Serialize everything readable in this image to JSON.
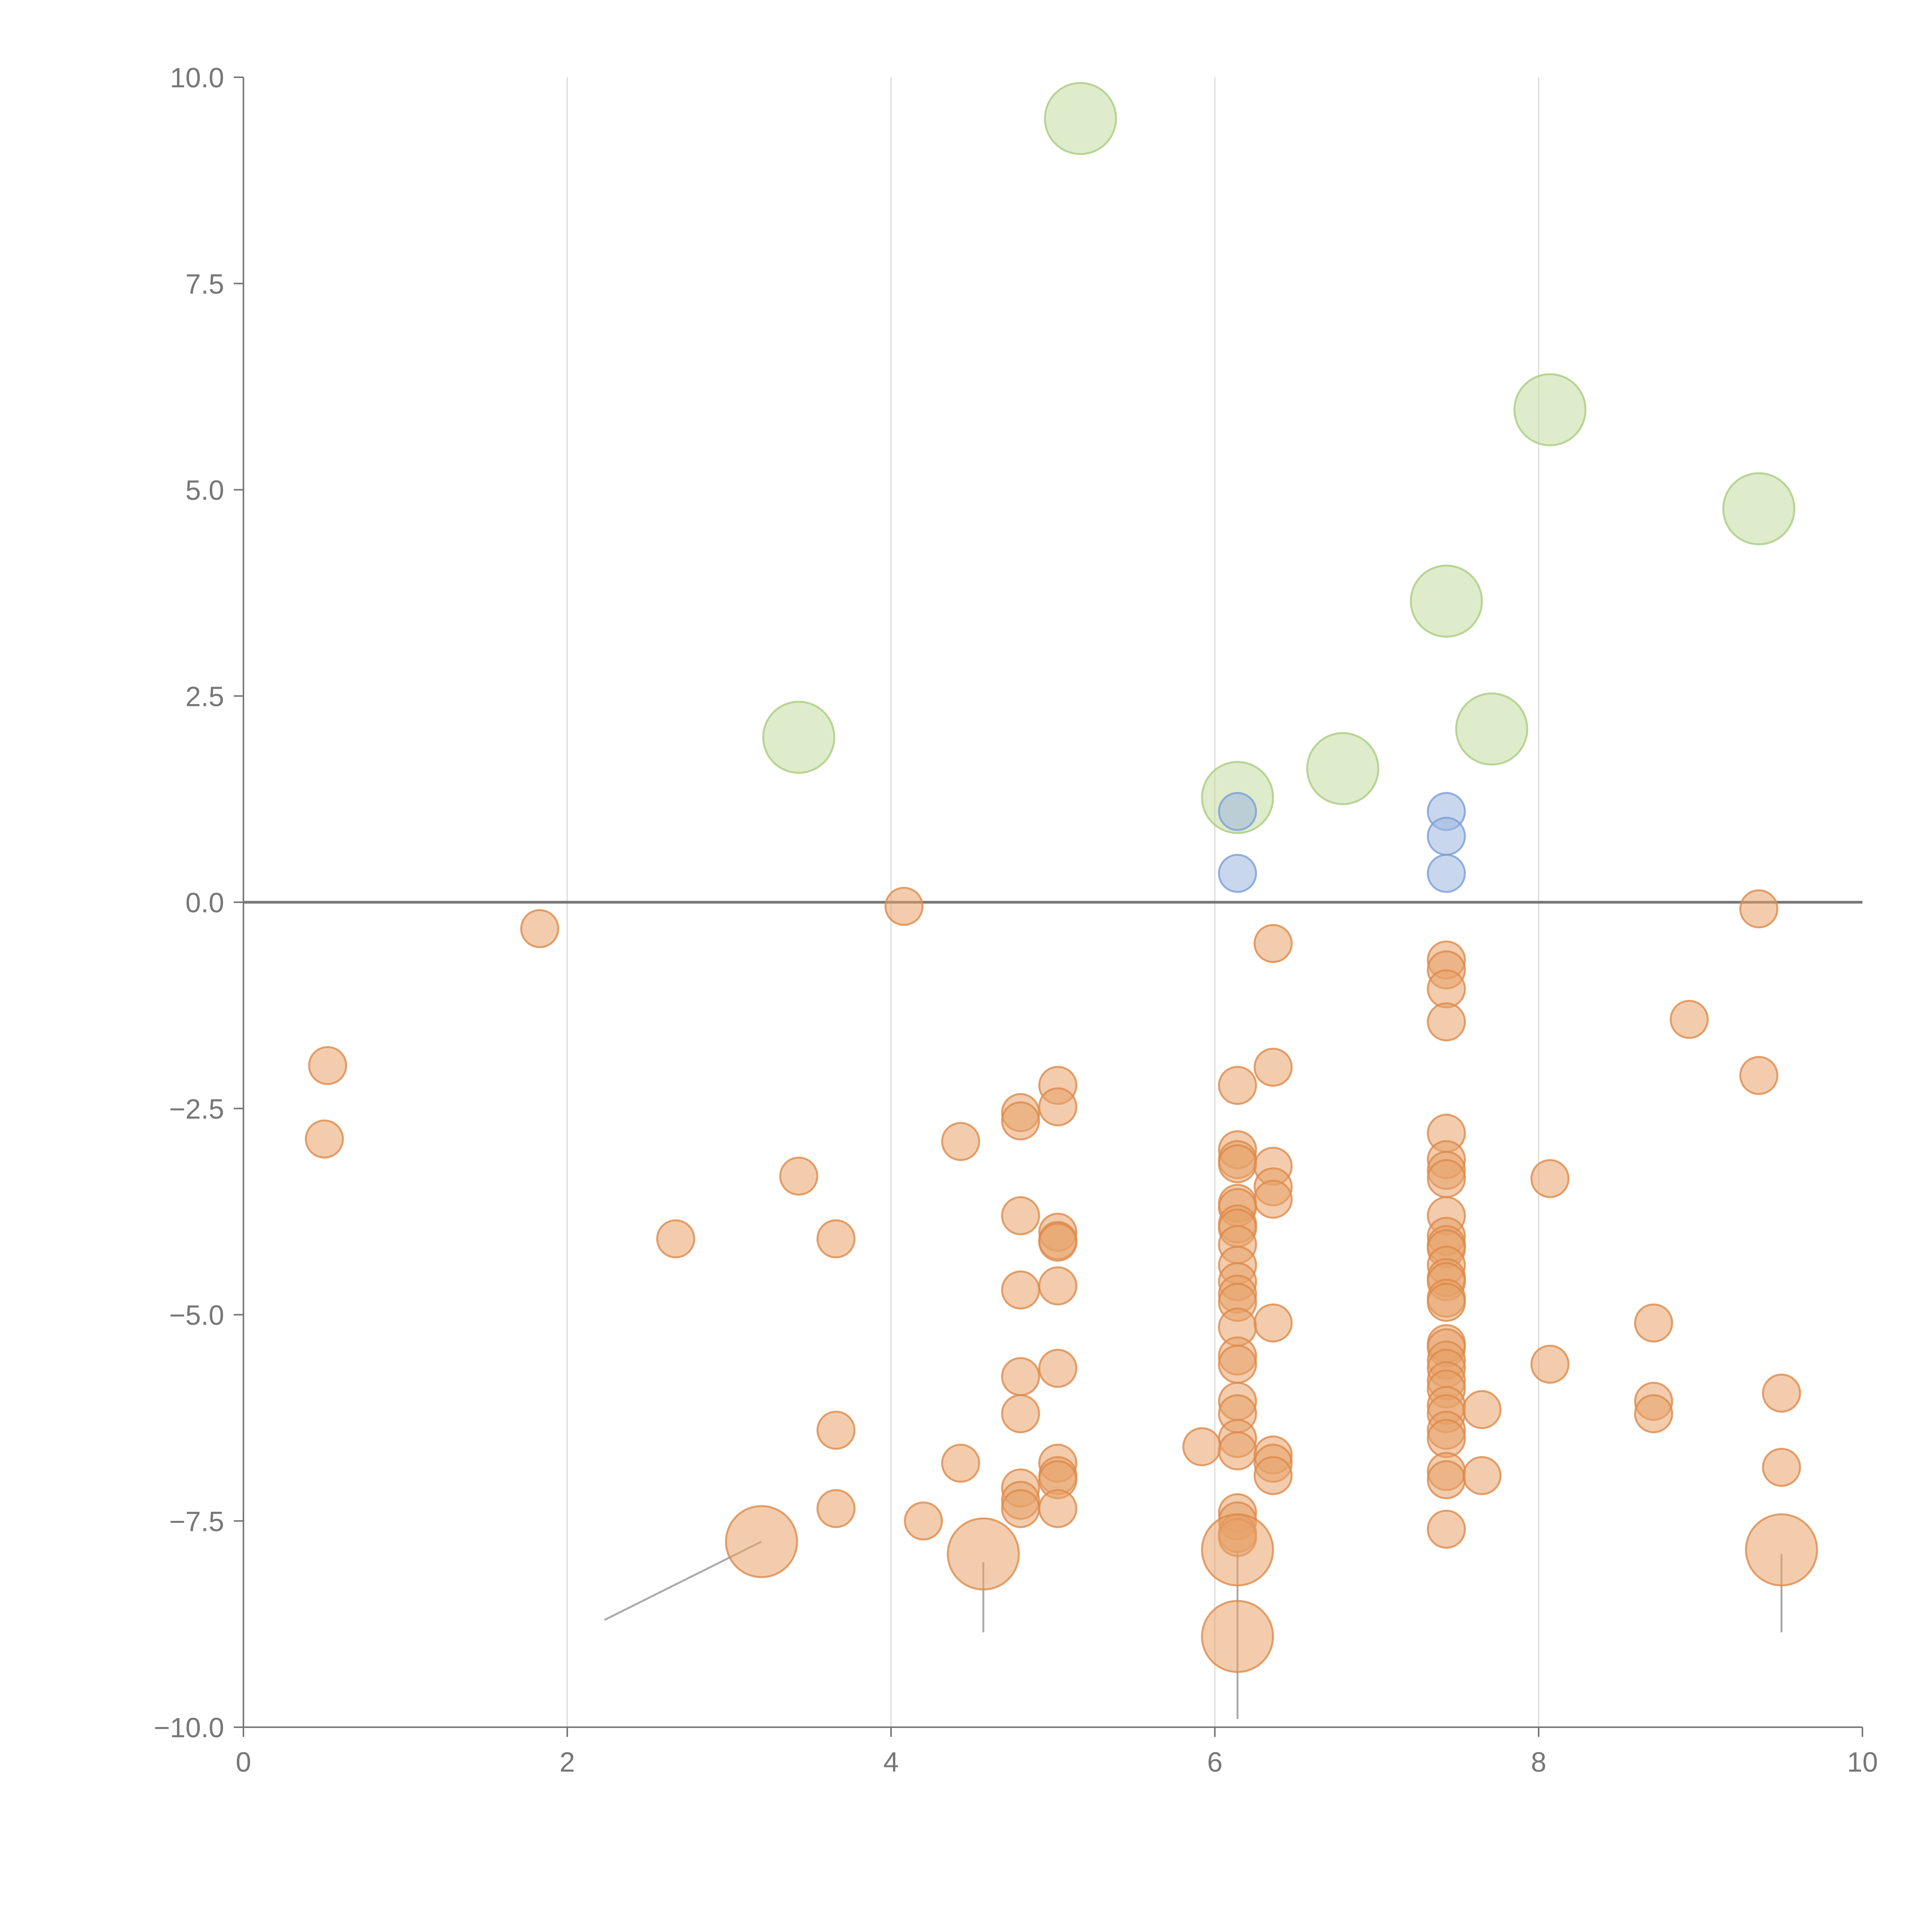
{
  "chart_data": {
    "type": "scatter",
    "title": "",
    "xlabel": "",
    "ylabel": "",
    "xlim": [
      0,
      10
    ],
    "ylim": [
      -10,
      10
    ],
    "grid": "vertical",
    "zero_line": true,
    "x_ticks": [
      "0",
      "2",
      "4",
      "6",
      "8",
      "10"
    ],
    "y_ticks": [
      "10.0",
      "7.5",
      "5.0",
      "2.5",
      "0.0",
      "−2.5",
      "−5.0",
      "−7.5",
      "−10.0"
    ],
    "colors": {
      "orange": "#e8a26a",
      "orange_stroke": "#dd8a4a",
      "green": "#c5dca0",
      "green_stroke": "#a9cc80",
      "blue": "#9db6e0",
      "blue_stroke": "#7a9ed6",
      "axis": "#777777",
      "grid": "#d9d9d9",
      "leader": "#aaaaaa"
    },
    "series": [
      {
        "name": "green",
        "size": "large",
        "points": [
          [
            5.17,
            9.5
          ],
          [
            8.07,
            5.97
          ],
          [
            9.36,
            4.77
          ],
          [
            7.43,
            3.65
          ],
          [
            7.71,
            2.1
          ],
          [
            3.43,
            2.0
          ],
          [
            6.79,
            1.62
          ],
          [
            6.14,
            1.27
          ]
        ]
      },
      {
        "name": "blue",
        "size": "small",
        "points": [
          [
            6.14,
            1.1
          ],
          [
            6.14,
            0.35
          ],
          [
            7.43,
            1.1
          ],
          [
            7.43,
            0.8
          ],
          [
            7.43,
            0.35
          ]
        ]
      },
      {
        "name": "orange",
        "size": "small",
        "points": [
          [
            0.52,
            -1.98
          ],
          [
            0.5,
            -2.87
          ],
          [
            1.83,
            -0.32
          ],
          [
            4.08,
            -0.05
          ],
          [
            2.67,
            -4.08
          ],
          [
            3.43,
            -3.32
          ],
          [
            3.66,
            -4.08
          ],
          [
            3.66,
            -6.4
          ],
          [
            3.66,
            -7.35
          ],
          [
            4.2,
            -7.5
          ],
          [
            4.43,
            -2.9
          ],
          [
            4.43,
            -6.8
          ],
          [
            4.8,
            -2.55
          ],
          [
            4.8,
            -2.65
          ],
          [
            4.8,
            -3.8
          ],
          [
            4.8,
            -4.7
          ],
          [
            4.8,
            -5.75
          ],
          [
            4.8,
            -6.2
          ],
          [
            4.8,
            -7.1
          ],
          [
            4.8,
            -7.25
          ],
          [
            4.8,
            -7.35
          ],
          [
            5.03,
            -2.22
          ],
          [
            5.03,
            -2.48
          ],
          [
            5.03,
            -4.0
          ],
          [
            5.03,
            -4.1
          ],
          [
            5.03,
            -4.12
          ],
          [
            5.03,
            -4.65
          ],
          [
            5.03,
            -5.65
          ],
          [
            5.03,
            -6.8
          ],
          [
            5.03,
            -6.95
          ],
          [
            5.03,
            -7.0
          ],
          [
            5.03,
            -7.35
          ],
          [
            5.92,
            -6.6
          ],
          [
            6.14,
            -2.22
          ],
          [
            6.14,
            -3.0
          ],
          [
            6.14,
            -3.12
          ],
          [
            6.14,
            -3.17
          ],
          [
            6.14,
            -3.65
          ],
          [
            6.14,
            -3.7
          ],
          [
            6.14,
            -3.9
          ],
          [
            6.14,
            -3.95
          ],
          [
            6.14,
            -4.15
          ],
          [
            6.14,
            -4.4
          ],
          [
            6.14,
            -4.6
          ],
          [
            6.14,
            -4.75
          ],
          [
            6.14,
            -4.85
          ],
          [
            6.14,
            -5.15
          ],
          [
            6.14,
            -5.5
          ],
          [
            6.14,
            -5.6
          ],
          [
            6.14,
            -6.05
          ],
          [
            6.14,
            -6.2
          ],
          [
            6.14,
            -6.5
          ],
          [
            6.14,
            -6.65
          ],
          [
            6.14,
            -7.4
          ],
          [
            6.14,
            -7.5
          ],
          [
            6.14,
            -7.65
          ],
          [
            6.14,
            -7.7
          ],
          [
            6.36,
            -0.5
          ],
          [
            6.36,
            -2.0
          ],
          [
            6.36,
            -3.2
          ],
          [
            6.36,
            -3.45
          ],
          [
            6.36,
            -3.6
          ],
          [
            6.36,
            -5.1
          ],
          [
            6.36,
            -6.7
          ],
          [
            6.36,
            -6.8
          ],
          [
            6.36,
            -6.95
          ],
          [
            7.43,
            -0.7
          ],
          [
            7.43,
            -0.82
          ],
          [
            7.43,
            -1.05
          ],
          [
            7.43,
            -1.45
          ],
          [
            7.43,
            -2.8
          ],
          [
            7.43,
            -3.12
          ],
          [
            7.43,
            -3.25
          ],
          [
            7.43,
            -3.35
          ],
          [
            7.43,
            -3.8
          ],
          [
            7.43,
            -4.05
          ],
          [
            7.43,
            -4.15
          ],
          [
            7.43,
            -4.2
          ],
          [
            7.43,
            -4.4
          ],
          [
            7.43,
            -4.55
          ],
          [
            7.43,
            -4.6
          ],
          [
            7.43,
            -4.8
          ],
          [
            7.43,
            -4.85
          ],
          [
            7.43,
            -5.35
          ],
          [
            7.43,
            -5.4
          ],
          [
            7.43,
            -5.55
          ],
          [
            7.43,
            -5.65
          ],
          [
            7.43,
            -5.8
          ],
          [
            7.43,
            -5.9
          ],
          [
            7.43,
            -6.1
          ],
          [
            7.43,
            -6.2
          ],
          [
            7.43,
            -6.4
          ],
          [
            7.43,
            -6.5
          ],
          [
            7.43,
            -6.9
          ],
          [
            7.43,
            -7.0
          ],
          [
            7.43,
            -7.6
          ],
          [
            7.65,
            -6.15
          ],
          [
            7.65,
            -6.95
          ],
          [
            8.07,
            -3.35
          ],
          [
            8.07,
            -5.6
          ],
          [
            8.71,
            -5.1
          ],
          [
            8.71,
            -6.05
          ],
          [
            8.71,
            -6.2
          ],
          [
            8.93,
            -1.42
          ],
          [
            9.36,
            -0.08
          ],
          [
            9.36,
            -2.1
          ],
          [
            9.5,
            -5.95
          ],
          [
            9.5,
            -6.85
          ]
        ]
      },
      {
        "name": "orange",
        "size": "large",
        "points": [
          [
            3.2,
            -7.75
          ],
          [
            4.57,
            -7.9
          ],
          [
            6.14,
            -7.85
          ],
          [
            6.14,
            -8.9
          ],
          [
            9.5,
            -7.85
          ]
        ]
      }
    ],
    "leader_lines": [
      {
        "from": [
          3.2,
          -7.75
        ],
        "to": [
          2.23,
          -8.7
        ]
      },
      {
        "from": [
          4.57,
          -8.0
        ],
        "to": [
          4.57,
          -8.85
        ]
      },
      {
        "from": [
          6.14,
          -7.85
        ],
        "to": [
          6.14,
          -8.9
        ]
      },
      {
        "from": [
          6.14,
          -8.9
        ],
        "to": [
          6.14,
          -9.9
        ]
      },
      {
        "from": [
          9.5,
          -7.9
        ],
        "to": [
          9.5,
          -8.85
        ]
      }
    ]
  }
}
